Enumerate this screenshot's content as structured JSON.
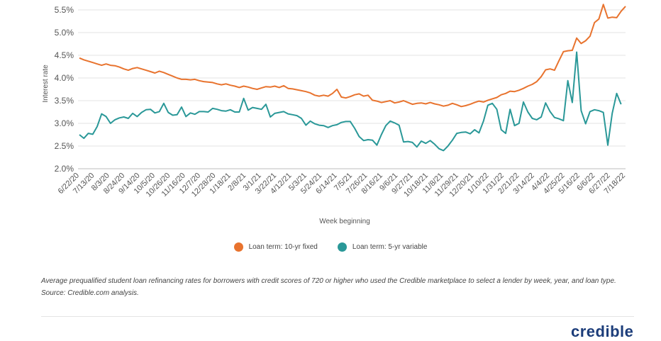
{
  "chart_data": {
    "type": "line",
    "ylabel": "Interest rate",
    "xlabel": "Week beginning",
    "ylim": [
      2.0,
      5.5
    ],
    "yticks": [
      "2.0%",
      "2.5%",
      "3.0%",
      "3.5%",
      "4.0%",
      "4.5%",
      "5.0%",
      "5.5%"
    ],
    "xticks": [
      "6/22/20",
      "7/13/20",
      "8/3/20",
      "8/24/20",
      "9/14/20",
      "10/5/20",
      "10/26/20",
      "11/16/20",
      "12/7/20",
      "12/28/20",
      "1/18/21",
      "2/8/21",
      "3/1/21",
      "3/22/21",
      "4/12/21",
      "5/3/21",
      "5/24/21",
      "6/14/21",
      "7/5/21",
      "7/26/21",
      "8/16/21",
      "9/6/21",
      "9/27/21",
      "10/18/21",
      "11/8/21",
      "11/29/21",
      "12/20/21",
      "1/10/22",
      "1/31/22",
      "2/21/22",
      "3/14/22",
      "4/4/22",
      "4/25/22",
      "5/16/22",
      "6/6/22",
      "6/27/22",
      "7/18/22"
    ],
    "grid": true,
    "legend_position": "bottom",
    "series": [
      {
        "name": "Loan term: 10-yr fixed",
        "color": "#e8732e",
        "values": [
          4.44,
          4.4,
          4.37,
          4.34,
          4.31,
          4.28,
          4.31,
          4.28,
          4.27,
          4.24,
          4.2,
          4.17,
          4.21,
          4.23,
          4.2,
          4.17,
          4.14,
          4.11,
          4.15,
          4.12,
          4.08,
          4.04,
          4.0,
          3.97,
          3.97,
          3.96,
          3.97,
          3.94,
          3.92,
          3.91,
          3.9,
          3.87,
          3.85,
          3.87,
          3.84,
          3.82,
          3.79,
          3.82,
          3.8,
          3.77,
          3.75,
          3.78,
          3.81,
          3.8,
          3.82,
          3.79,
          3.83,
          3.77,
          3.76,
          3.74,
          3.72,
          3.7,
          3.67,
          3.62,
          3.6,
          3.62,
          3.6,
          3.66,
          3.75,
          3.58,
          3.56,
          3.59,
          3.63,
          3.65,
          3.6,
          3.62,
          3.51,
          3.49,
          3.46,
          3.48,
          3.5,
          3.45,
          3.47,
          3.5,
          3.46,
          3.42,
          3.44,
          3.45,
          3.43,
          3.46,
          3.43,
          3.41,
          3.38,
          3.4,
          3.44,
          3.41,
          3.37,
          3.39,
          3.42,
          3.46,
          3.49,
          3.47,
          3.51,
          3.54,
          3.57,
          3.63,
          3.66,
          3.71,
          3.7,
          3.73,
          3.77,
          3.82,
          3.86,
          3.92,
          4.03,
          4.18,
          4.2,
          4.17,
          4.38,
          4.58,
          4.6,
          4.61,
          4.88,
          4.76,
          4.82,
          4.92,
          5.22,
          5.3,
          5.62,
          5.32,
          5.34,
          5.33,
          5.47,
          5.58
        ]
      },
      {
        "name": "Loan term: 5-yr variable",
        "color": "#2a9898",
        "values": [
          2.75,
          2.67,
          2.78,
          2.76,
          2.93,
          3.21,
          3.15,
          3.0,
          3.08,
          3.12,
          3.14,
          3.11,
          3.22,
          3.15,
          3.24,
          3.3,
          3.31,
          3.23,
          3.26,
          3.44,
          3.24,
          3.18,
          3.19,
          3.36,
          3.15,
          3.23,
          3.2,
          3.26,
          3.26,
          3.25,
          3.33,
          3.31,
          3.28,
          3.27,
          3.3,
          3.25,
          3.25,
          3.55,
          3.29,
          3.35,
          3.33,
          3.31,
          3.42,
          3.14,
          3.22,
          3.24,
          3.26,
          3.21,
          3.19,
          3.17,
          3.11,
          2.96,
          3.05,
          2.99,
          2.96,
          2.95,
          2.91,
          2.95,
          2.97,
          3.02,
          3.04,
          3.04,
          2.89,
          2.71,
          2.62,
          2.64,
          2.63,
          2.52,
          2.75,
          2.95,
          3.05,
          3.01,
          2.96,
          2.59,
          2.6,
          2.58,
          2.48,
          2.61,
          2.56,
          2.62,
          2.54,
          2.44,
          2.4,
          2.5,
          2.63,
          2.78,
          2.8,
          2.81,
          2.77,
          2.86,
          2.79,
          3.05,
          3.4,
          3.44,
          3.31,
          2.86,
          2.78,
          3.31,
          2.95,
          3.0,
          3.47,
          3.25,
          3.11,
          3.08,
          3.14,
          3.45,
          3.26,
          3.13,
          3.1,
          3.06,
          3.94,
          3.46,
          4.57,
          3.28,
          2.99,
          3.26,
          3.3,
          3.28,
          3.24,
          2.52,
          3.22,
          3.66,
          3.42
        ]
      }
    ]
  },
  "caption": "Average prequalified student loan refinancing rates for borrowers with credit scores of 720 or higher who used the Credible marketplace to select a lender by week, year, and loan type. Source: Credible.com analysis.",
  "logo_text": "credible"
}
